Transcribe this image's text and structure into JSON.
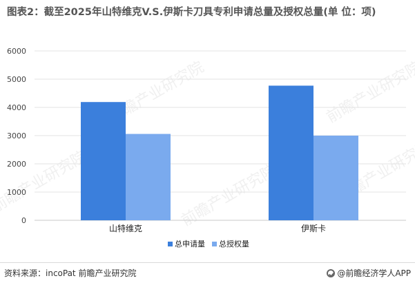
{
  "title": "图表2：截至2025年山特维克V.S.伊斯卡刀具专利申请总量及授权总量(单 位：项)",
  "source": "资料来源：incoPat 前瞻产业研究院",
  "brand": "@前瞻经济学人APP",
  "watermark": "前瞻产业研究院",
  "colors": {
    "series1": "#3b7fdc",
    "series2": "#7aaaee",
    "grid": "#e3e3e3",
    "axis_text": "#444444"
  },
  "chart_data": {
    "type": "bar",
    "categories": [
      "山特维克",
      "伊斯卡"
    ],
    "series": [
      {
        "name": "总申请量",
        "values": [
          4190,
          4770
        ],
        "color": "#3b7fdc"
      },
      {
        "name": "总授权量",
        "values": [
          3060,
          3000
        ],
        "color": "#7aaaee"
      }
    ],
    "ylim": [
      0,
      6000
    ],
    "yticks": [
      0,
      1000,
      2000,
      3000,
      4000,
      5000,
      6000
    ],
    "grid": true,
    "legend_position": "bottom-center"
  }
}
